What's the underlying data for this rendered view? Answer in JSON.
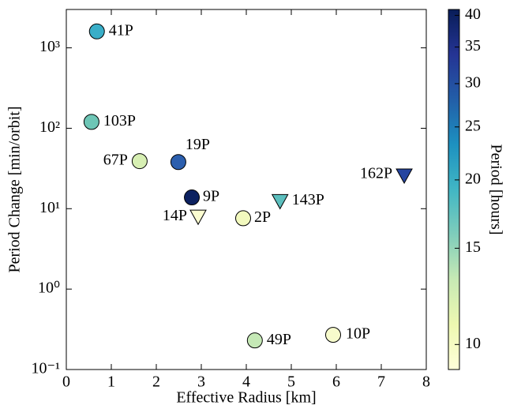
{
  "chart_data": {
    "type": "scatter",
    "xlabel": "Effective Radius [km]",
    "ylabel": "Period Change [min/orbit]",
    "xlim": [
      0,
      8
    ],
    "xticks": [
      0,
      1,
      2,
      3,
      4,
      5,
      6,
      7,
      8
    ],
    "ylim": [
      0.1,
      3000
    ],
    "ylog": true,
    "yticks": [
      {
        "value": 0.1,
        "label": "10⁻¹"
      },
      {
        "value": 1,
        "label": "10⁰"
      },
      {
        "value": 10,
        "label": "10¹"
      },
      {
        "value": 100,
        "label": "10²"
      },
      {
        "value": 1000,
        "label": "10³"
      }
    ],
    "points": [
      {
        "name": "41P",
        "x": 0.68,
        "y": 1600,
        "marker": "circle",
        "color": "#39aec8"
      },
      {
        "name": "103P",
        "x": 0.56,
        "y": 120,
        "marker": "circle",
        "color": "#6ec6b6"
      },
      {
        "name": "67P",
        "x": 1.63,
        "y": 39,
        "marker": "circle",
        "color": "#d7efb3"
      },
      {
        "name": "19P",
        "x": 2.49,
        "y": 38,
        "marker": "circle",
        "color": "#2c5fae"
      },
      {
        "name": "9P",
        "x": 2.79,
        "y": 13.8,
        "marker": "circle",
        "color": "#0c2160"
      },
      {
        "name": "14P",
        "x": 2.93,
        "y": 8,
        "marker": "triangle",
        "color": "#fbfdd0"
      },
      {
        "name": "2P",
        "x": 3.93,
        "y": 7.6,
        "marker": "circle",
        "color": "#f2f9be"
      },
      {
        "name": "143P",
        "x": 4.75,
        "y": 12.5,
        "marker": "triangle",
        "color": "#5cbfbe"
      },
      {
        "name": "162P",
        "x": 7.51,
        "y": 26,
        "marker": "triangle",
        "color": "#2545a0"
      },
      {
        "name": "49P",
        "x": 4.19,
        "y": 0.23,
        "marker": "circle",
        "color": "#c5e8b6"
      },
      {
        "name": "10P",
        "x": 5.93,
        "y": 0.27,
        "marker": "circle",
        "color": "#f7fbcc"
      }
    ],
    "colorbar": {
      "label": "Period [hours]",
      "lim": [
        9,
        41
      ],
      "log": true,
      "ticks": [
        10,
        15,
        20,
        25,
        30,
        35,
        40
      ],
      "colors": [
        "#ffffd9",
        "#edf8b1",
        "#c7e9b4",
        "#7fcdbb",
        "#41b6c4",
        "#1d91c0",
        "#225ea8",
        "#253494",
        "#081d58"
      ]
    }
  }
}
